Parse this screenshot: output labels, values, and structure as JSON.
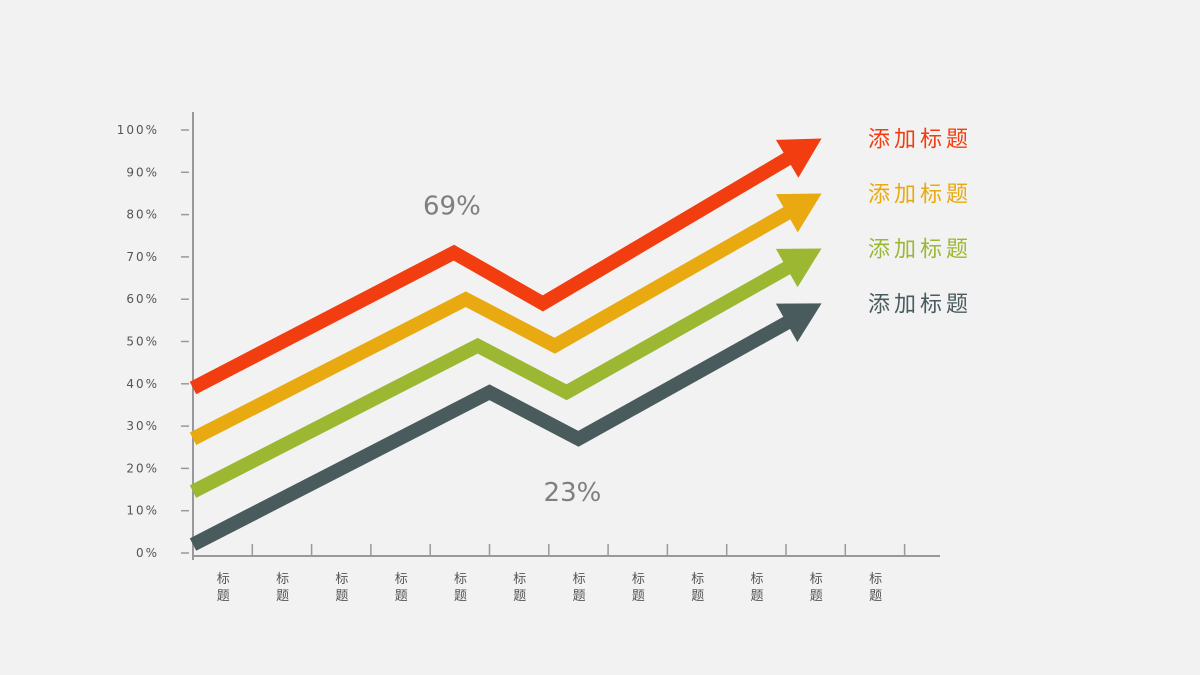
{
  "chart_data": {
    "type": "line",
    "title": "",
    "xlabel": "",
    "ylabel": "",
    "ylim": [
      0,
      100
    ],
    "y_ticks": [
      "0%",
      "10%",
      "20%",
      "30%",
      "40%",
      "50%",
      "60%",
      "70%",
      "80%",
      "90%",
      "100%"
    ],
    "y_tick_values": [
      0,
      10,
      20,
      30,
      40,
      50,
      60,
      70,
      80,
      90,
      100
    ],
    "x_ticks": [
      "标题",
      "标题",
      "标题",
      "标题",
      "标题",
      "标题",
      "标题",
      "标题",
      "标题",
      "标题",
      "标题",
      "标题"
    ],
    "series": [
      {
        "name": "添加标题",
        "color": "#f23d10",
        "x": [
          0,
          4.4,
          5.9,
          10.6
        ],
        "values": [
          39,
          71,
          59,
          98
        ]
      },
      {
        "name": "添加标题",
        "color": "#e8aa10",
        "x": [
          0,
          4.6,
          6.1,
          10.6
        ],
        "values": [
          27,
          60,
          49,
          85
        ]
      },
      {
        "name": "添加标题",
        "color": "#9cb833",
        "x": [
          0,
          4.8,
          6.3,
          10.6
        ],
        "values": [
          14.5,
          49,
          38,
          72
        ]
      },
      {
        "name": "添加标题",
        "color": "#4a5b5e",
        "x": [
          0,
          5.0,
          6.5,
          10.6
        ],
        "values": [
          2,
          38,
          27,
          59
        ]
      }
    ],
    "annotations": [
      {
        "text": "69%",
        "series": 0,
        "note": "above peak of top series"
      },
      {
        "text": "23%",
        "series": 3,
        "note": "below trough of bottom series"
      }
    ],
    "legend_position": "right"
  }
}
